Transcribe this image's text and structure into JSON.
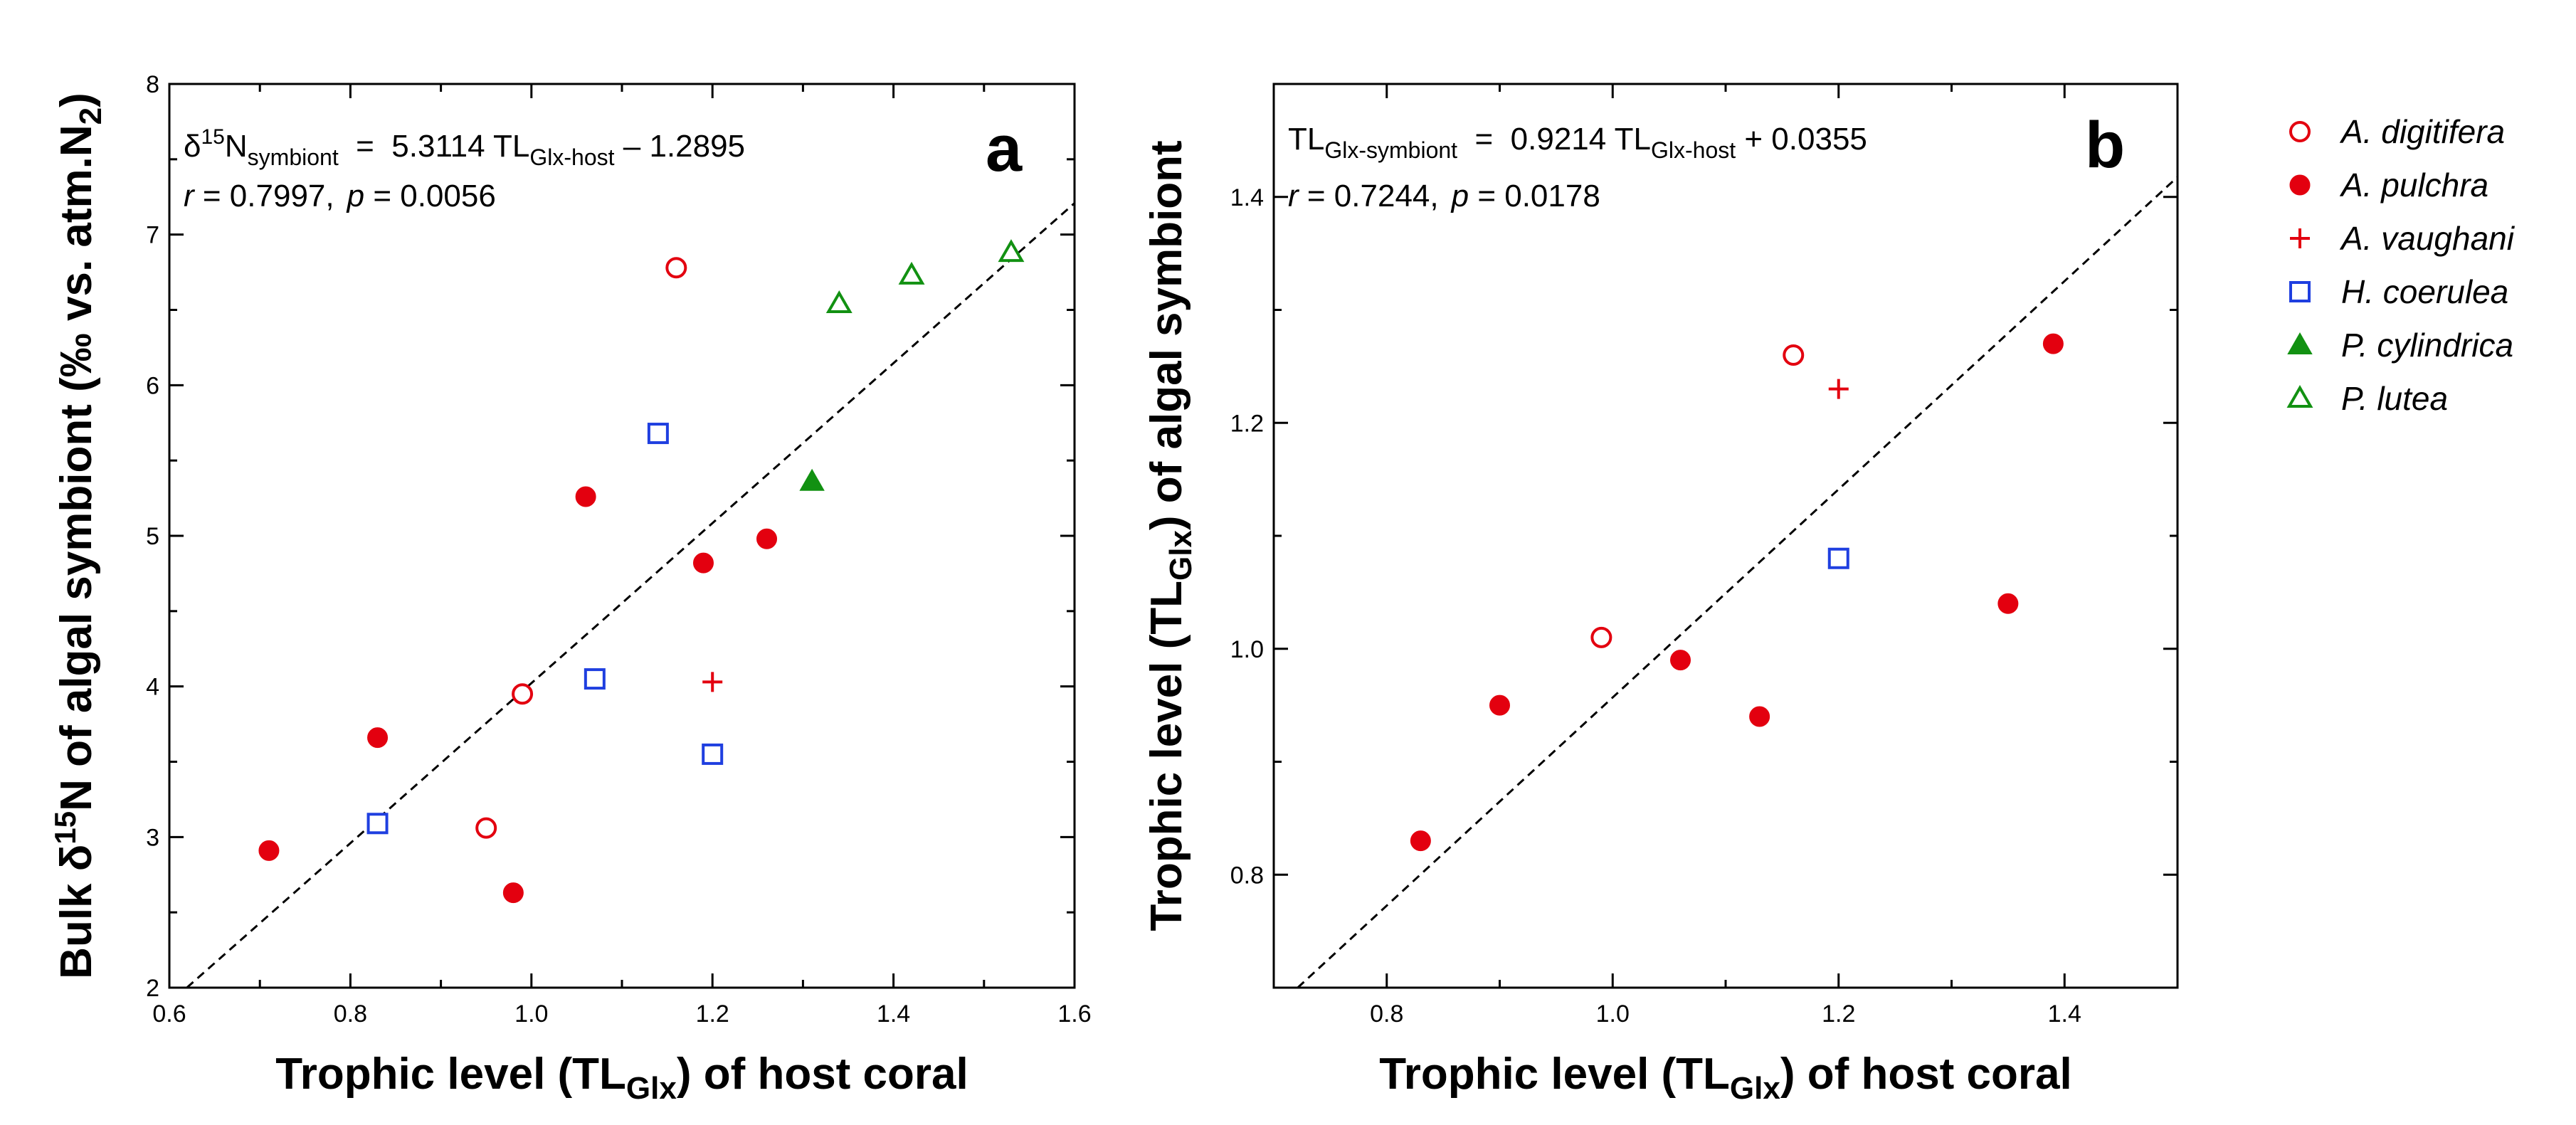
{
  "chart_data": [
    {
      "type": "scatter",
      "panel_label": "a",
      "xlabel": {
        "main": "Trophic level (TL",
        "sub": "Glx",
        "rest": ") of host coral"
      },
      "ylabel": {
        "pre": "Bulk δ",
        "sup": "15",
        "mid": "N of algal symbiont (‰ vs. atm.N",
        "sub": "2",
        "post": ")"
      },
      "xlim": [
        0.6,
        1.6
      ],
      "ylim": [
        2,
        8
      ],
      "xticks": [
        "0.6",
        "0.8",
        "1.0",
        "1.2",
        "1.4",
        "1.6"
      ],
      "yticks": [
        "2",
        "3",
        "4",
        "5",
        "6",
        "7",
        "8"
      ],
      "equation": {
        "lhs": "δ",
        "lhs_sup": "15",
        "lhs_main": "N",
        "lhs_sub": "symbiont",
        "eq": "  =  5.3114 TL",
        "rhs_sub": "Glx-host",
        "rhs_tail": " – 1.2895"
      },
      "stats": {
        "r_label": "r",
        "r_value": " = 0.7997,",
        "p_label": "p",
        "p_value": " = 0.0056"
      },
      "fit": {
        "slope": 5.3114,
        "intercept": -1.2895
      },
      "series": [
        {
          "name": "A. digitifera",
          "points": [
            [
              1.16,
              6.78
            ],
            [
              0.99,
              3.95
            ],
            [
              0.95,
              3.06
            ]
          ]
        },
        {
          "name": "A. pulchra",
          "points": [
            [
              1.06,
              5.26
            ],
            [
              1.26,
              4.98
            ],
            [
              1.19,
              4.82
            ],
            [
              0.83,
              3.66
            ],
            [
              0.71,
              2.91
            ],
            [
              0.98,
              2.63
            ]
          ]
        },
        {
          "name": "A. vaughani",
          "points": [
            [
              1.2,
              4.03
            ]
          ]
        },
        {
          "name": "H. coerulea",
          "points": [
            [
              1.14,
              5.68
            ],
            [
              1.07,
              4.05
            ],
            [
              1.2,
              3.55
            ],
            [
              0.83,
              3.09
            ]
          ]
        },
        {
          "name": "P. cylindrica",
          "points": [
            [
              1.31,
              5.36
            ]
          ]
        },
        {
          "name": "P. lutea",
          "points": [
            [
              1.34,
              6.54
            ],
            [
              1.42,
              6.73
            ],
            [
              1.53,
              6.88
            ]
          ]
        }
      ]
    },
    {
      "type": "scatter",
      "panel_label": "b",
      "xlabel": {
        "main": "Trophic level (TL",
        "sub": "Glx",
        "rest": ") of host coral"
      },
      "ylabel": {
        "pre": "Trophic level (TL",
        "sub": "Glx",
        "post": ") of algal symbiont"
      },
      "xlim": [
        0.7,
        1.5
      ],
      "ylim": [
        0.7,
        1.5
      ],
      "xticks": [
        "0.8",
        "1.0",
        "1.2",
        "1.4"
      ],
      "yticks": [
        "0.8",
        "1.0",
        "1.2",
        "1.4"
      ],
      "equation": {
        "lhs": "TL",
        "lhs_sub": "Glx-symbiont",
        "eq": "  =  0.9214 TL",
        "rhs_sub": "Glx-host",
        "rhs_tail": " + 0.0355"
      },
      "stats": {
        "r_label": "r",
        "r_value": " = 0.7244,",
        "p_label": "p",
        "p_value": " = 0.0178"
      },
      "fit": {
        "slope": 0.9214,
        "intercept": 0.0355
      },
      "series": [
        {
          "name": "A. digitifera",
          "points": [
            [
              1.16,
              1.26
            ],
            [
              0.99,
              1.01
            ]
          ]
        },
        {
          "name": "A. pulchra",
          "points": [
            [
              1.39,
              1.27
            ],
            [
              1.35,
              1.04
            ],
            [
              1.06,
              0.99
            ],
            [
              0.9,
              0.95
            ],
            [
              1.13,
              0.94
            ],
            [
              0.83,
              0.83
            ]
          ]
        },
        {
          "name": "A. vaughani",
          "points": [
            [
              1.2,
              1.23
            ]
          ]
        },
        {
          "name": "H. coerulea",
          "points": [
            [
              1.2,
              1.08
            ]
          ]
        }
      ]
    }
  ],
  "legend": {
    "entries": [
      {
        "name": "A. digitifera",
        "marker": "circle-open",
        "color": "#e3000f"
      },
      {
        "name": "A. pulchra",
        "marker": "circle-filled",
        "color": "#e3000f"
      },
      {
        "name": "A. vaughani",
        "marker": "plus",
        "color": "#e3000f"
      },
      {
        "name": "H. coerulea",
        "marker": "square-open",
        "color": "#1f3fe0"
      },
      {
        "name": "P. cylindrica",
        "marker": "triangle-filled",
        "color": "#129112"
      },
      {
        "name": "P. lutea",
        "marker": "triangle-open",
        "color": "#129112"
      }
    ]
  }
}
